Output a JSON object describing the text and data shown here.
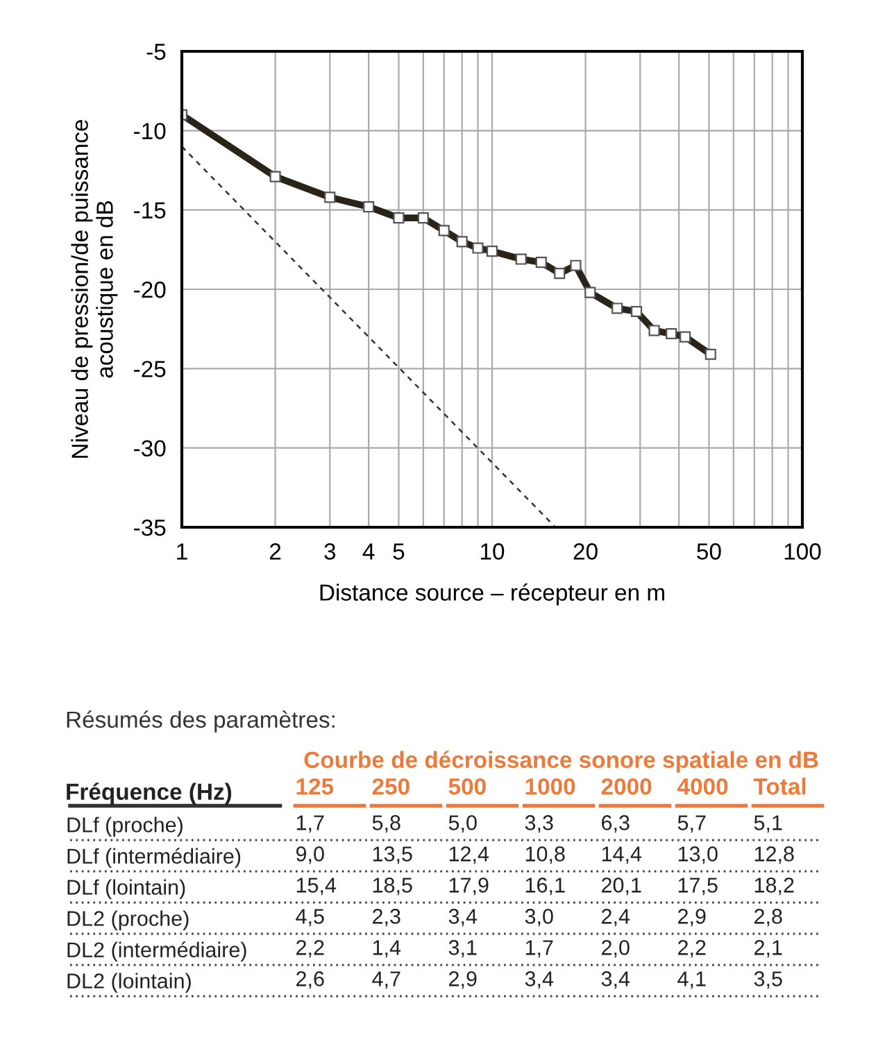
{
  "chart_data": [
    {
      "type": "line",
      "xlabel": "Distance source – récepteur en m",
      "ylabel": "Niveau de pression/de puissance\nacoustique en dB",
      "log": "x",
      "xlim": [
        1,
        100
      ],
      "ylim": [
        -35,
        -5
      ],
      "xticks": [
        1,
        2,
        3,
        4,
        5,
        {
          "value": 6,
          "label": null
        },
        {
          "value": 7,
          "label": null
        },
        {
          "value": 8,
          "label": null
        },
        {
          "value": 9,
          "label": null
        },
        10,
        20,
        {
          "value": 30,
          "label": null
        },
        {
          "value": 40,
          "label": null
        },
        50,
        {
          "value": 60,
          "label": null
        },
        {
          "value": 70,
          "label": null
        },
        {
          "value": 80,
          "label": null
        },
        {
          "value": 90,
          "label": null
        },
        100
      ],
      "yticks": [
        -35,
        -30,
        -25,
        -20,
        -15,
        -10,
        -5
      ],
      "grid": true,
      "legend": false,
      "series": [
        {
          "color": "#2a2418",
          "marker": "square",
          "line_style": "solid",
          "x": [
            1,
            2,
            3,
            4,
            5,
            6,
            7,
            8,
            9,
            10,
            12.4,
            14.4,
            16.5,
            18.6,
            20.7,
            25.3,
            29.2,
            33.3,
            37.8,
            41.9,
            50.6
          ],
          "values": [
            -9.0,
            -12.9,
            -14.2,
            -14.8,
            -15.5,
            -15.5,
            -16.3,
            -17.0,
            -17.4,
            -17.6,
            -18.1,
            -18.3,
            -19.0,
            -18.5,
            -20.2,
            -21.2,
            -21.4,
            -22.6,
            -22.8,
            -23.0,
            -24.1
          ]
        },
        {
          "color": "#333333",
          "marker": "none",
          "line_style": "dashed",
          "x": [
            1,
            16
          ],
          "values": [
            -11,
            -35
          ]
        }
      ]
    },
    {
      "type": "other",
      "title": "Résumés des paramètres:",
      "subtitle": "Courbe de décroissance sonore spatiale en dB",
      "ylabel": "Fréquence (Hz)",
      "categories": [
        "125",
        "250",
        "500",
        "1000",
        "2000",
        "4000",
        "Total"
      ],
      "y_categories": [
        "DLf (proche)",
        "DLf (intermédiaire)",
        "DLf (lointain)",
        "DL2 (proche)",
        "DL2 (intermédiaire)",
        "DL2 (lointain)"
      ],
      "cell_labels": [
        [
          "1,7",
          "5,8",
          "5,0",
          "3,3",
          "6,3",
          "5,7",
          "5,1"
        ],
        [
          "9,0",
          "13,5",
          "12,4",
          "10,8",
          "14,4",
          "13,0",
          "12,8"
        ],
        [
          "15,4",
          "18,5",
          "17,9",
          "16,1",
          "20,1",
          "17,5",
          "18,2"
        ],
        [
          "4,5",
          "2,3",
          "3,4",
          "3,0",
          "2,4",
          "2,9",
          "2,8"
        ],
        [
          "2,2",
          "1,4",
          "3,1",
          "1,7",
          "2,0",
          "2,2",
          "2,1"
        ],
        [
          "2,6",
          "4,7",
          "2,9",
          "3,4",
          "3,4",
          "4,1",
          "3,5"
        ]
      ]
    }
  ]
}
